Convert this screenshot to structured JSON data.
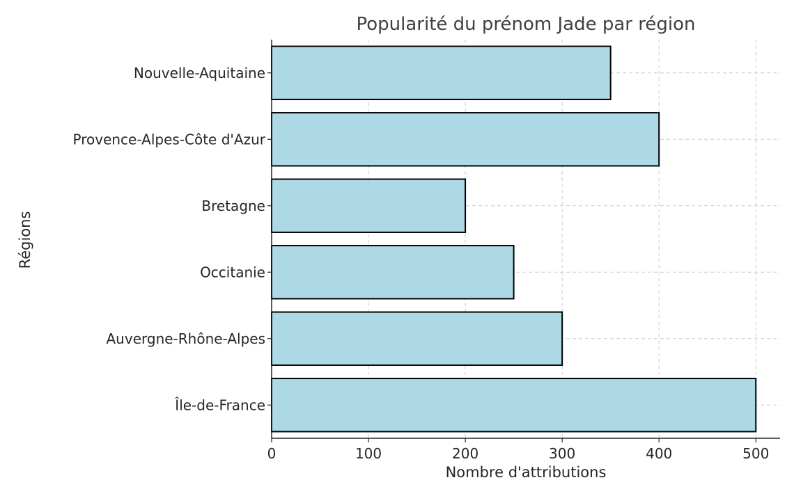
{
  "chart_data": {
    "type": "bar",
    "orientation": "horizontal",
    "title": "Popularité du prénom Jade par région",
    "xlabel": "Nombre d'attributions",
    "ylabel": "Régions",
    "categories": [
      "Île-de-France",
      "Auvergne-Rhône-Alpes",
      "Occitanie",
      "Bretagne",
      "Provence-Alpes-Côte d'Azur",
      "Nouvelle-Aquitaine"
    ],
    "values": [
      500,
      300,
      250,
      200,
      400,
      350
    ],
    "xlim": [
      0,
      525
    ],
    "xticks": [
      0,
      100,
      200,
      300,
      400,
      500
    ],
    "grid": true,
    "bar_color": "#add8e6",
    "bar_edge_color": "#000000",
    "grid_color": "#cccccc"
  }
}
